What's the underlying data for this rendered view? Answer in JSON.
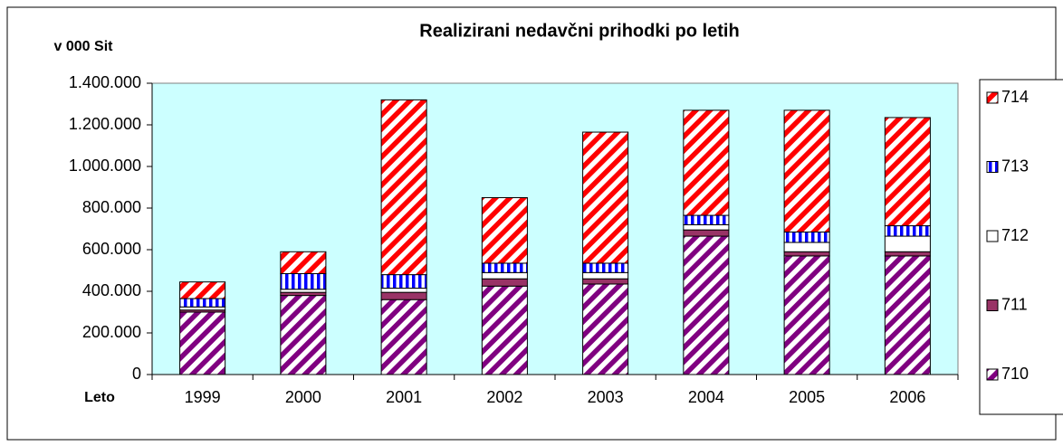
{
  "chart_data": {
    "type": "stacked_bar",
    "title": "Realizirani nedavčni prihodki po letih",
    "y_label": "v 000 Sit",
    "x_label": "Leto",
    "categories": [
      "1999",
      "2000",
      "2001",
      "2002",
      "2003",
      "2004",
      "2005",
      "2006"
    ],
    "series": [
      {
        "name": "710",
        "color": "#800080",
        "pattern": "diagonal",
        "values": [
          300000,
          380000,
          360000,
          425000,
          435000,
          665000,
          570000,
          570000
        ]
      },
      {
        "name": "711",
        "color": "#993366",
        "pattern": "solid",
        "values": [
          10000,
          15000,
          35000,
          35000,
          25000,
          30000,
          20000,
          20000
        ]
      },
      {
        "name": "712",
        "color": "#ffffff",
        "pattern": "solid",
        "values": [
          15000,
          15000,
          20000,
          30000,
          30000,
          25000,
          45000,
          75000
        ]
      },
      {
        "name": "713",
        "color": "#0000ff",
        "pattern": "vertical",
        "values": [
          40000,
          75000,
          65000,
          45000,
          45000,
          45000,
          50000,
          50000
        ]
      },
      {
        "name": "714",
        "color": "#ff0000",
        "pattern": "diagonal",
        "values": [
          80000,
          105000,
          840000,
          315000,
          630000,
          505000,
          585000,
          520000
        ]
      }
    ],
    "ylim": [
      0,
      1400000
    ],
    "yticks": [
      0,
      {
        "value": 200000,
        "label": "200.000"
      },
      {
        "value": 400000,
        "label": "400.000"
      },
      {
        "value": 600000,
        "label": "600.000"
      },
      {
        "value": 800000,
        "label": "800.000"
      },
      {
        "value": 1000000,
        "label": "1.000.000"
      },
      {
        "value": 1200000,
        "label": "1.200.000"
      },
      {
        "value": 1400000,
        "label": "1.400.000"
      }
    ],
    "plot_background": "#ccffff",
    "legend": "right"
  }
}
